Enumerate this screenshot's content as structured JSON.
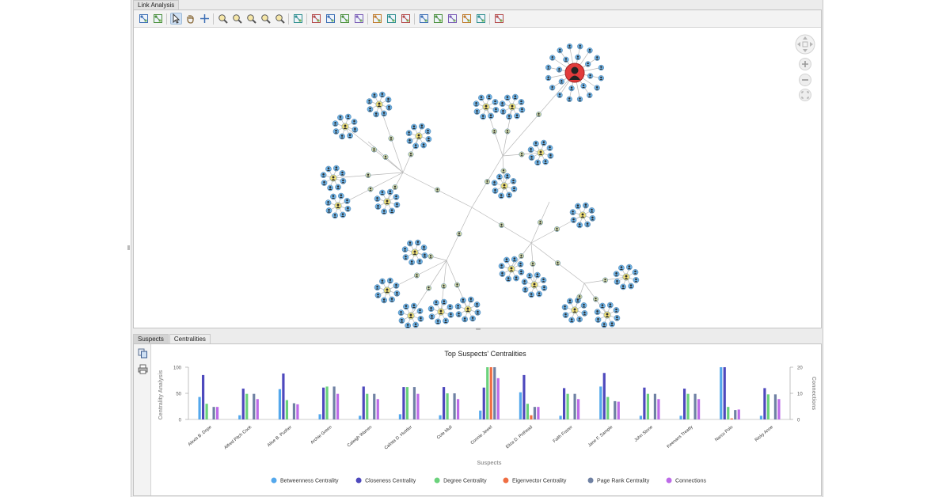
{
  "tabs_top": [
    "Link Analysis"
  ],
  "tabs_bottom": [
    "Suspects",
    "Centralities"
  ],
  "toolbar": {
    "icons": [
      "copy-graph-icon",
      "export-graph-icon",
      "select-arrow-icon",
      "pan-hand-icon",
      "move-cross-icon",
      "zoom-in-icon",
      "zoom-out-icon",
      "zoom-selection-icon",
      "zoom-previous-icon",
      "zoom-fit-icon",
      "grid-layout-icon",
      "hierarchical-layout-icon",
      "circular-layout-icon",
      "tree-layout-icon",
      "organic-layout-icon",
      "fit-to-view-icon",
      "expand-icon",
      "collapse-icon",
      "shortest-path-icon",
      "centrality-icon",
      "cluster-icon",
      "remove-links-icon",
      "import-icon",
      "settings-icon"
    ]
  },
  "side": {
    "icons": [
      "copy-chart-icon",
      "print-icon"
    ]
  },
  "colors": {
    "accent": "#2b5cab",
    "node": "#6fb3e6",
    "hub": "#f4e37a",
    "hub_green": "#5fc46f",
    "highlight": "#e23b3b"
  },
  "chart_data": {
    "type": "bar",
    "title": "Top Suspects' Centralities",
    "xlabel": "Suspects",
    "ylabel": "Centrality Analysis",
    "y2label": "Connections",
    "ylim": [
      0,
      100
    ],
    "y2lim": [
      0,
      20
    ],
    "yticks": [
      "0",
      "50",
      "100"
    ],
    "y2ticks": [
      "0",
      "10",
      "20"
    ],
    "legend_position": "bottom",
    "categories": [
      "Alexis B. Dope",
      "Alfred Pitch Cook",
      "Alice B. Pusher",
      "Archie Green",
      "Caleigh Warren",
      "Calista D. Hustler",
      "Cole Mull",
      "Connie Jewel",
      "Eliza D. Pothead",
      "Faith Frazer",
      "Jane F. Sample",
      "John Stone",
      "Keenans Treatty",
      "Narco Polo",
      "Ricky Anne"
    ],
    "series": [
      {
        "name": "Betweenness Centrality",
        "color": "#54a8ec",
        "values": [
          43,
          8,
          58,
          10,
          7,
          10,
          8,
          17,
          52,
          7,
          63,
          7,
          7,
          100,
          7
        ]
      },
      {
        "name": "Closeness Centrality",
        "color": "#4e49bd",
        "values": [
          85,
          59,
          88,
          61,
          63,
          62,
          62,
          61,
          85,
          60,
          89,
          61,
          59,
          100,
          60
        ]
      },
      {
        "name": "Degree Centrality",
        "color": "#6bd27c",
        "values": [
          30,
          49,
          37,
          63,
          49,
          62,
          50,
          100,
          30,
          49,
          43,
          49,
          49,
          24,
          48
        ]
      },
      {
        "name": "Eigenvector Centrality",
        "color": "#ef6e43",
        "values": [
          0,
          0,
          0,
          0,
          0,
          0,
          0,
          100,
          8,
          0,
          0,
          0,
          0,
          2,
          0
        ]
      },
      {
        "name": "Page Rank Centrality",
        "color": "#6f81a3",
        "values": [
          24,
          49,
          31,
          63,
          49,
          62,
          50,
          100,
          24,
          49,
          35,
          49,
          49,
          18,
          48
        ]
      },
      {
        "name": "Connections",
        "color": "#bd6be8",
        "axis": "right",
        "values": [
          4.8,
          7.8,
          5.8,
          9.8,
          7.8,
          9.8,
          7.8,
          15.8,
          4.8,
          7.8,
          6.8,
          7.8,
          7.8,
          3.8,
          7.8
        ]
      }
    ]
  }
}
